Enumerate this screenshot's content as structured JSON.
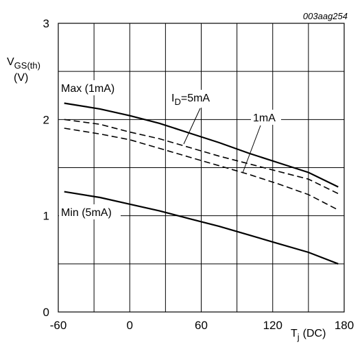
{
  "chart_data": {
    "type": "line",
    "figure_code": "003aag254",
    "ylabel": {
      "main": "V",
      "sub": "GS(th)",
      "unit": "(V)"
    },
    "xlabel": {
      "main": "T",
      "sub": "j",
      "unit": "(DC)"
    },
    "xlim": [
      -60,
      180
    ],
    "ylim": [
      0,
      3
    ],
    "xticks": [
      -60,
      0,
      60,
      120,
      180
    ],
    "yticks": [
      0,
      1,
      2,
      3
    ],
    "x_minor_gridlines": [
      -60,
      -30,
      0,
      30,
      60,
      90,
      120,
      150,
      180
    ],
    "y_minor_gridlines": [
      0,
      0.5,
      1,
      1.5,
      2,
      2.5,
      3
    ],
    "grid": true,
    "series": [
      {
        "style": "solid",
        "x": [
          -55,
          -25,
          0,
          25,
          50,
          75,
          100,
          125,
          150,
          175
        ],
        "values": [
          2.17,
          2.11,
          2.04,
          1.96,
          1.86,
          1.76,
          1.65,
          1.55,
          1.45,
          1.3
        ]
      },
      {
        "style": "dashed",
        "x": [
          -55,
          -25,
          0,
          25,
          50,
          75,
          100,
          125,
          150,
          175
        ],
        "values": [
          2.0,
          1.95,
          1.87,
          1.8,
          1.71,
          1.62,
          1.54,
          1.46,
          1.38,
          1.23
        ]
      },
      {
        "style": "dashed",
        "x": [
          -55,
          -25,
          0,
          25,
          50,
          75,
          100,
          125,
          150,
          175
        ],
        "values": [
          1.91,
          1.85,
          1.79,
          1.7,
          1.61,
          1.52,
          1.43,
          1.33,
          1.22,
          1.06
        ]
      },
      {
        "style": "solid",
        "x": [
          -55,
          -25,
          0,
          25,
          50,
          75,
          100,
          125,
          150,
          175
        ],
        "values": [
          1.25,
          1.19,
          1.12,
          1.05,
          0.97,
          0.89,
          0.8,
          0.71,
          0.62,
          0.5
        ]
      }
    ],
    "annotations": {
      "max": "Max (1mA)",
      "min": "Min (5mA)",
      "id_prefix": "I",
      "id_sub": "D",
      "id_value": "=5mA",
      "one_ma": "1mA"
    }
  }
}
